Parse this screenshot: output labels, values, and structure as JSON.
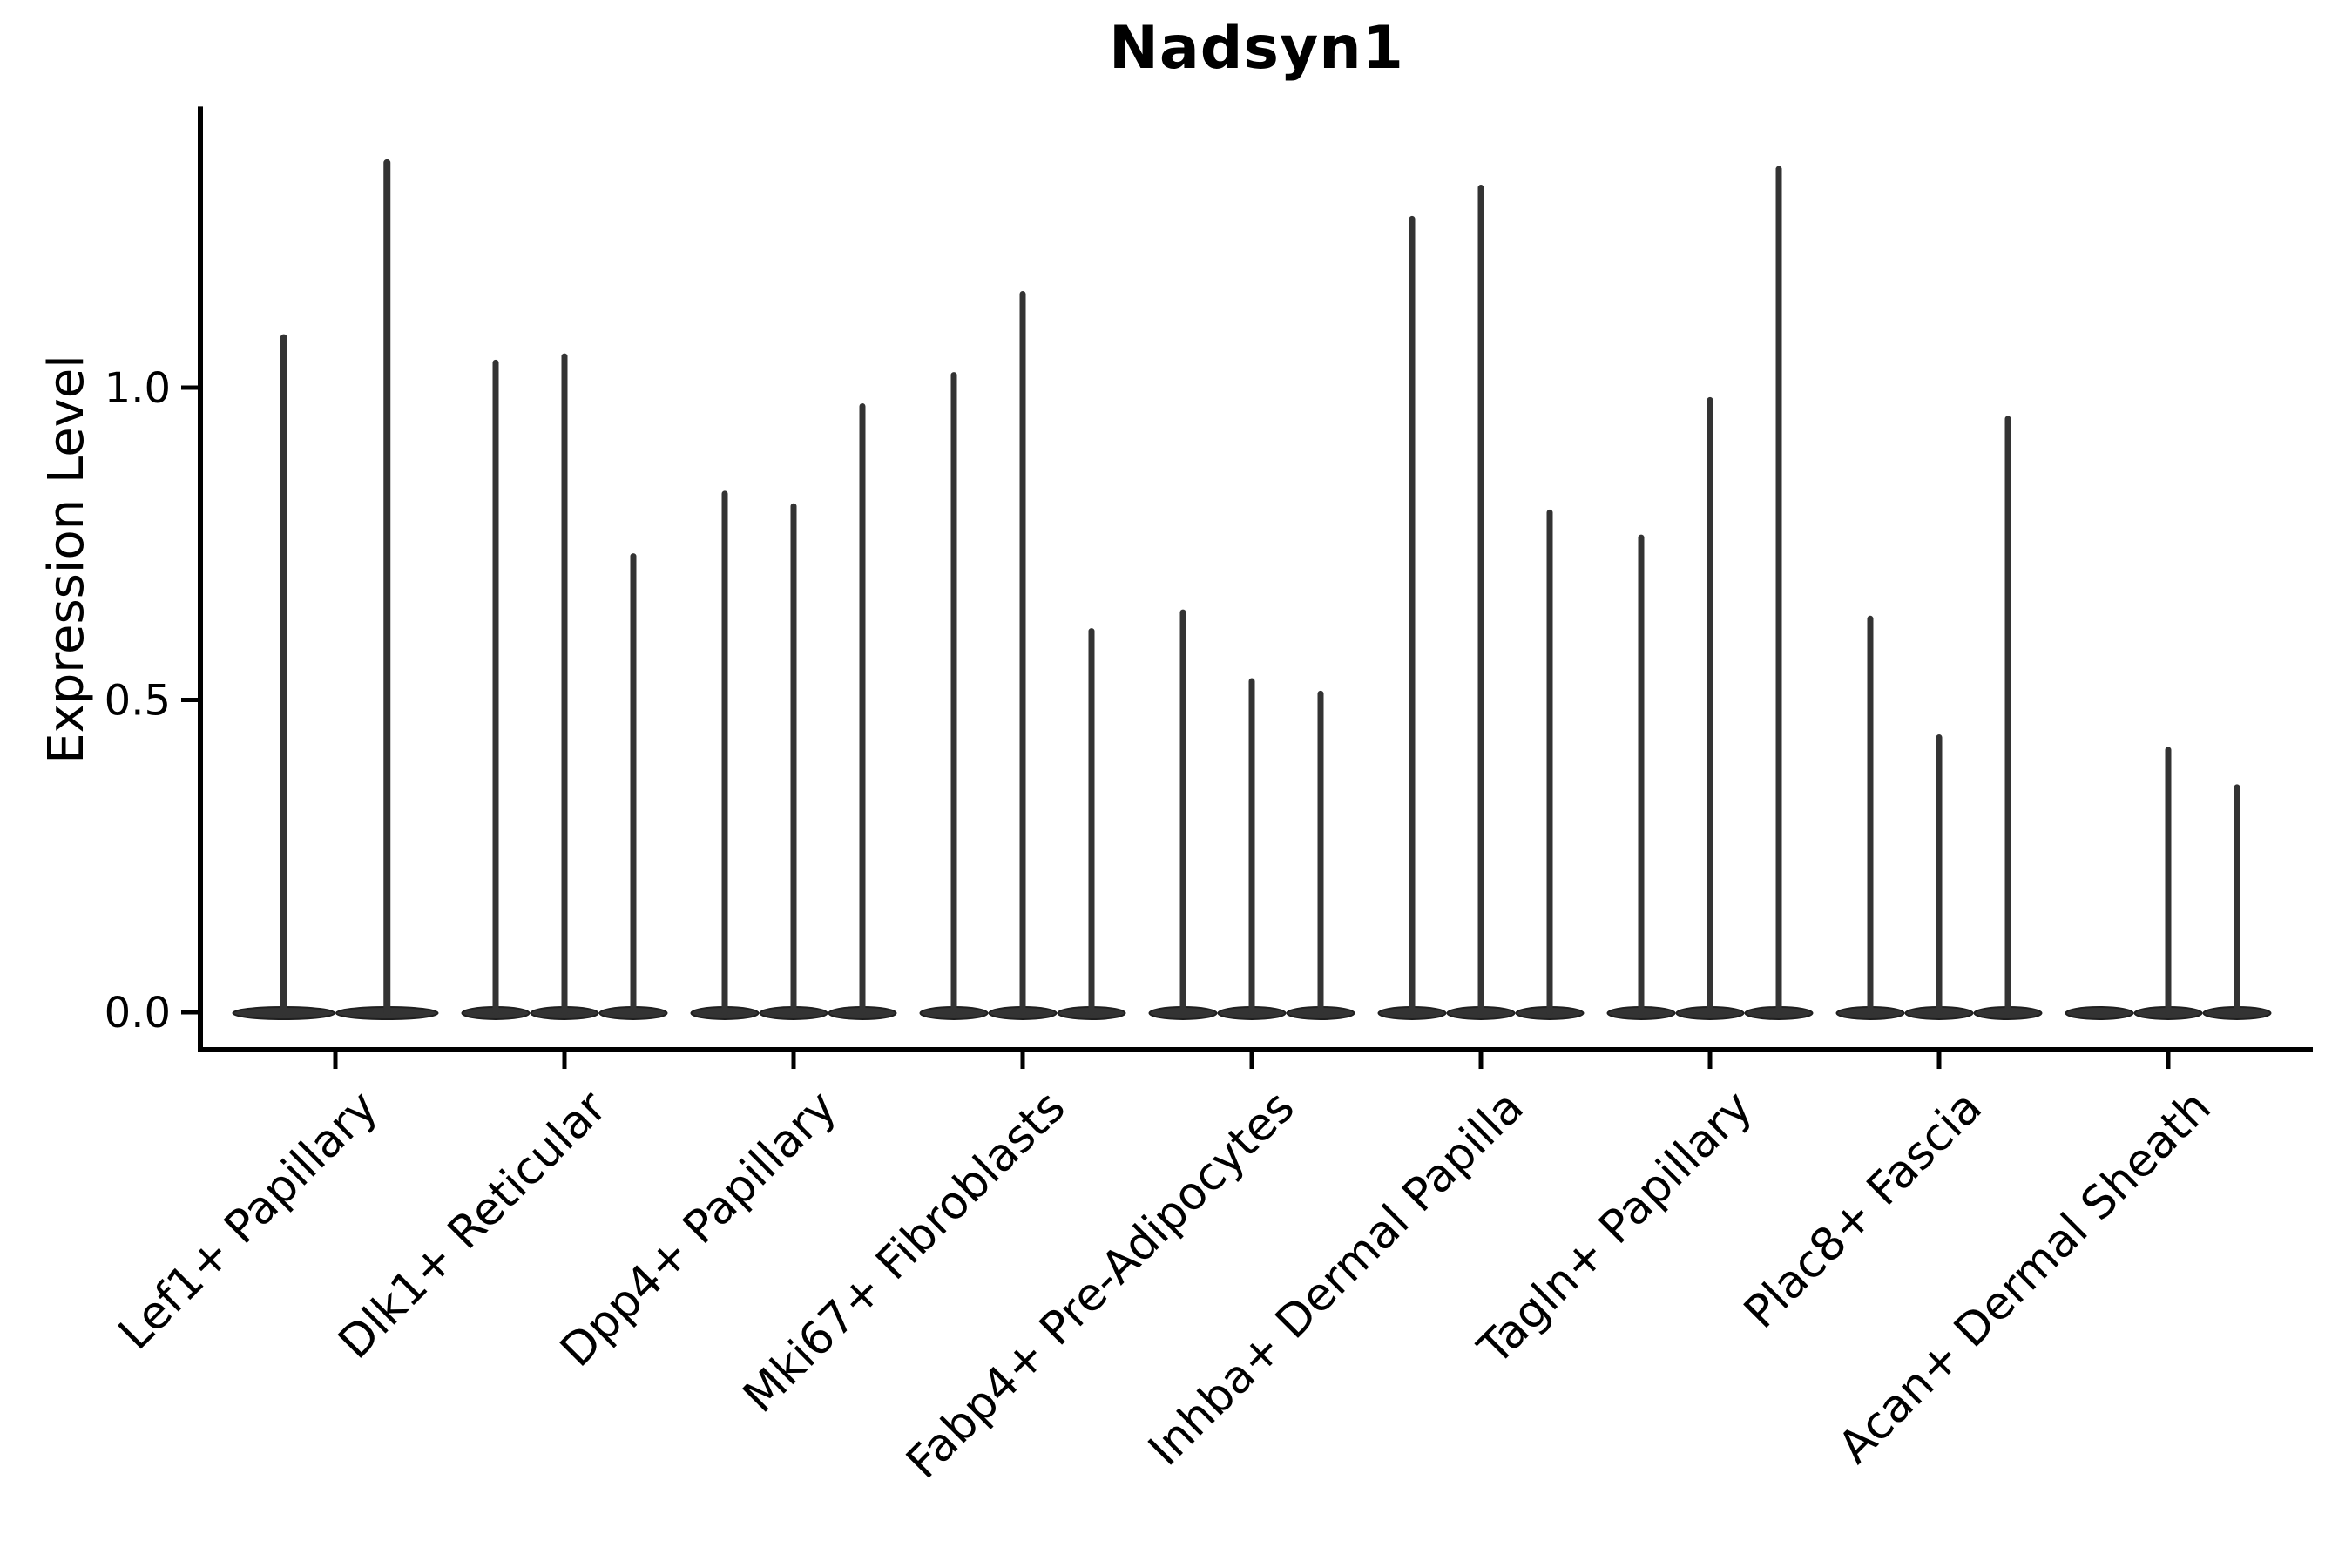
{
  "chart_data": {
    "type": "violin",
    "title": "Nadsyn1",
    "ylabel": "Expression Level",
    "xlabel": "",
    "y_tick_labels": [
      "0.0",
      "0.5",
      "1.0"
    ],
    "y_tick_values": [
      0.0,
      0.5,
      1.0
    ],
    "ylim": [
      -0.06,
      1.45
    ],
    "grid": false,
    "legend": "none",
    "categories": [
      "Lef1+ Papillary",
      "Dlk1+ Reticular",
      "Dpp4+ Papillary",
      "Mki67+ Fibroblasts",
      "Fabp4+ Pre-Adipocytes",
      "Inhba+ Dermal Papilla",
      "Tagln+ Papillary",
      "Plac8+ Fascia",
      "Acan+ Dermal Sheath"
    ],
    "series": [
      {
        "category": "Lef1+ Papillary",
        "violin_peak_expression": [
          1.08,
          1.36
        ]
      },
      {
        "category": "Dlk1+ Reticular",
        "violin_peak_expression": [
          1.04,
          1.05,
          0.73
        ]
      },
      {
        "category": "Dpp4+ Papillary",
        "violin_peak_expression": [
          0.83,
          0.81,
          0.97
        ]
      },
      {
        "category": "Mki67+ Fibroblasts",
        "violin_peak_expression": [
          1.02,
          1.15,
          0.61
        ]
      },
      {
        "category": "Fabp4+ Pre-Adipocytes",
        "violin_peak_expression": [
          0.64,
          0.53,
          0.51
        ]
      },
      {
        "category": "Inhba+ Dermal Papilla",
        "violin_peak_expression": [
          1.27,
          1.32,
          0.8
        ]
      },
      {
        "category": "Tagln+ Papillary",
        "violin_peak_expression": [
          0.76,
          0.98,
          1.35
        ]
      },
      {
        "category": "Plac8+ Fascia",
        "violin_peak_expression": [
          0.63,
          0.44,
          0.95
        ]
      },
      {
        "category": "Acan+ Dermal Sheath",
        "violin_peak_expression": [
          0.0,
          0.42,
          0.36
        ]
      }
    ],
    "colors": {
      "violin_fill": "#333333",
      "violin_stroke": "#1f1f1f",
      "axis": "#000000",
      "text": "#000000",
      "background": "#ffffff"
    }
  }
}
